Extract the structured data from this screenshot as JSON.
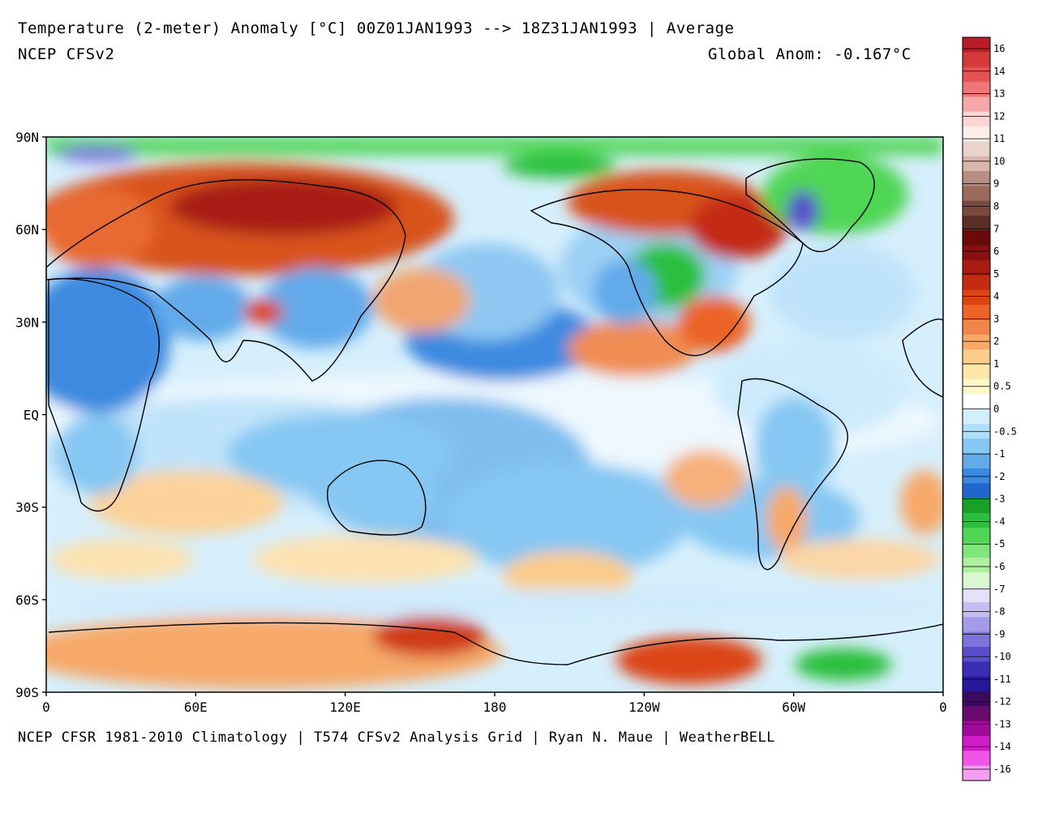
{
  "header": {
    "title": "Temperature (2-meter) Anomaly  [°C] 00Z01JAN1993 --> 18Z31JAN1993 | Average",
    "model": "NCEP CFSv2",
    "global_anom": "Global Anom: -0.167°C"
  },
  "footer": "NCEP CFSR 1981-2010 Climatology | T574 CFSv2 Analysis Grid | Ryan N. Maue | WeatherBELL",
  "axes": {
    "lat_labels": [
      "90N",
      "60N",
      "30N",
      "EQ",
      "30S",
      "60S",
      "90S"
    ],
    "lon_labels": [
      "0",
      "60E",
      "120E",
      "180",
      "120W",
      "60W",
      "0"
    ]
  },
  "colorbar": {
    "labels": [
      "16",
      "14",
      "13",
      "12",
      "11",
      "10",
      "9",
      "8",
      "7",
      "6",
      "5",
      "4",
      "3",
      "2",
      "1",
      "0.5",
      "0",
      "-0.5",
      "-1",
      "-2",
      "-3",
      "-4",
      "-5",
      "-6",
      "-7",
      "-8",
      "-9",
      "-10",
      "-11",
      "-12",
      "-13",
      "-14",
      "-16"
    ],
    "colors": [
      "#b81d28",
      "#d53a3a",
      "#e35353",
      "#ef7676",
      "#f6a7a7",
      "#fbd6d6",
      "#fdeeea",
      "#e9d3cc",
      "#d9b5aa",
      "#b98d80",
      "#9a6a5d",
      "#7b4a3e",
      "#5b2f25",
      "#6b0a0a",
      "#8a1010",
      "#a81c12",
      "#c42c12",
      "#dc4413",
      "#ec6428",
      "#f1864a",
      "#f6a969",
      "#fbcc8a",
      "#fde7a6",
      "#fff8c8",
      "#ffffff",
      "#d2efff",
      "#ace0fb",
      "#86c7f3",
      "#62aaea",
      "#3c8ae0",
      "#1f67cc",
      "#18a027",
      "#2bbf3d",
      "#4fd654",
      "#80e57a",
      "#aef0a2",
      "#d9f8cd",
      "#e6e1f8",
      "#c6bdf2",
      "#a49aea",
      "#7f74dc",
      "#5a4fcb",
      "#3a2fb4",
      "#27189a",
      "#3a0a5c",
      "#6a0a6e",
      "#a00a9a",
      "#d21bc8",
      "#ef55e6",
      "#f79ef3"
    ]
  }
}
